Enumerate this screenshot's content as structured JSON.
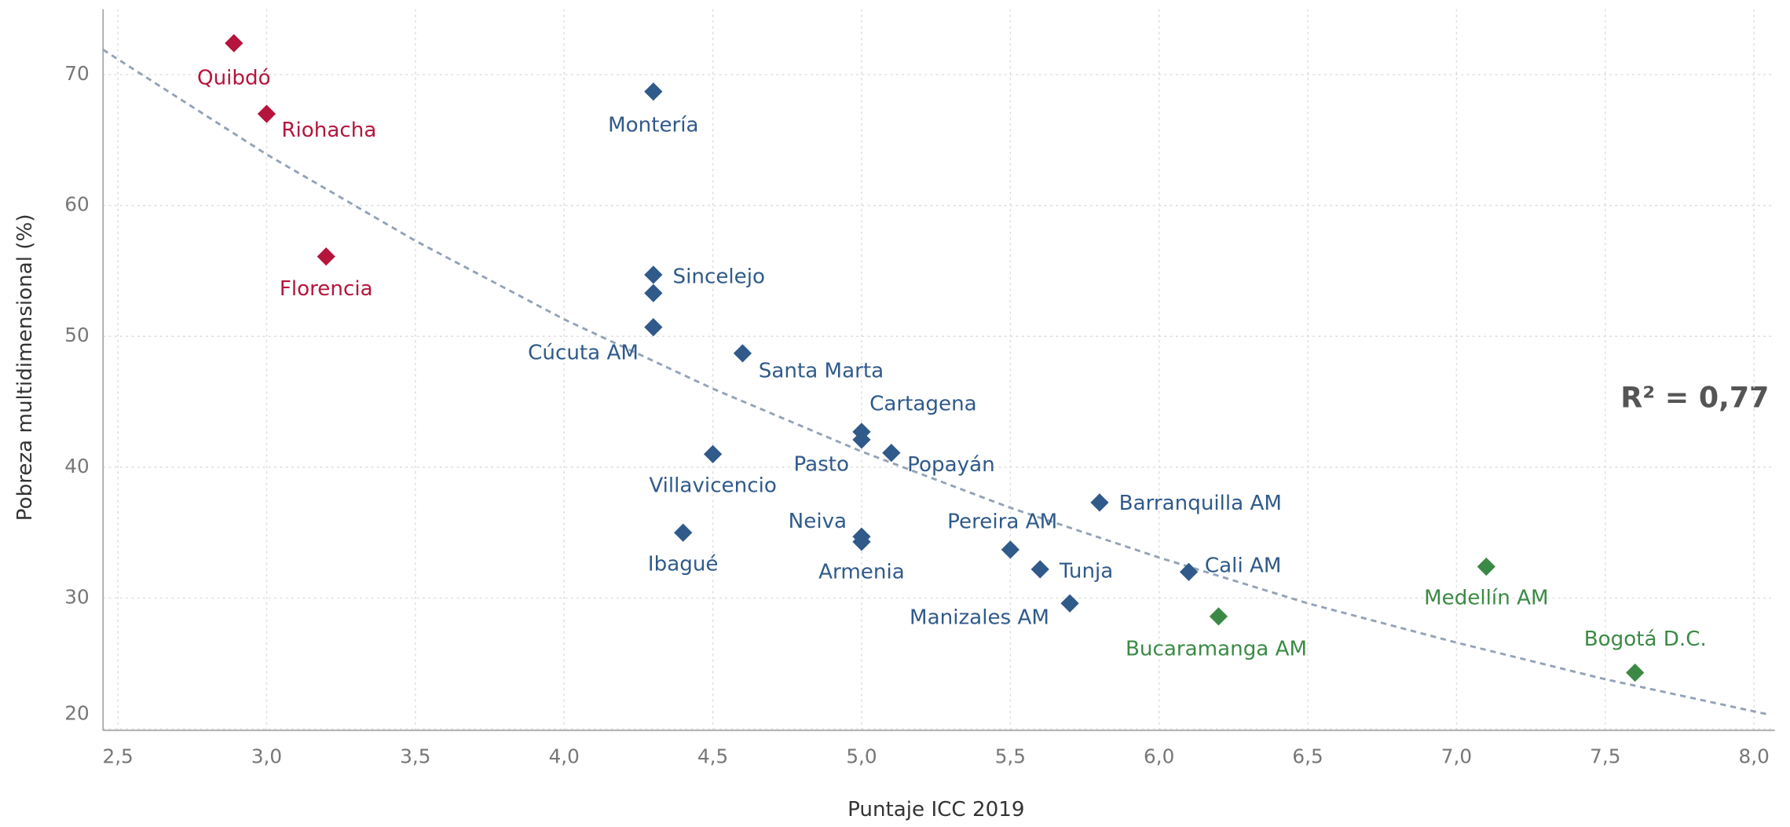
{
  "chart_data": {
    "type": "scatter",
    "xlabel": "Puntaje ICC 2019",
    "ylabel": "Pobreza multidimensional (%)",
    "annotation": "R² = 0,77",
    "x": [
      2.89,
      3.0,
      3.2,
      4.3,
      4.3,
      4.3,
      4.3,
      4.6,
      5.0,
      5.0,
      5.1,
      4.5,
      5.8,
      4.4,
      5.0,
      5.0,
      5.5,
      5.6,
      6.1,
      5.7,
      6.2,
      7.1,
      7.6
    ],
    "values": [
      72.4,
      67.0,
      56.1,
      68.7,
      54.7,
      53.3,
      50.7,
      48.7,
      42.7,
      42.1,
      41.1,
      41.0,
      37.3,
      35.0,
      34.7,
      34.3,
      33.7,
      32.2,
      32.0,
      29.6,
      28.6,
      32.4,
      24.3
    ],
    "labels": [
      "Quibdó",
      "Riohacha",
      "Florencia",
      "Montería",
      "Sincelejo",
      null,
      "Cúcuta AM",
      "Santa Marta",
      "Cartagena",
      "Pasto",
      "Popayán",
      "Villavicencio",
      "Barranquilla AM",
      "Ibagué",
      "Neiva",
      "Armenia",
      "Pereira AM",
      "Tunja",
      "Cali AM",
      "Manizales AM",
      "Bucaramanga AM",
      "Medellín AM",
      "Bogotá D.C."
    ],
    "colors": [
      "#b5153b",
      "#b5153b",
      "#b5153b",
      "#2f5a8a",
      "#2f5a8a",
      "#2f5a8a",
      "#2f5a8a",
      "#2f5a8a",
      "#2f5a8a",
      "#2f5a8a",
      "#2f5a8a",
      "#2f5a8a",
      "#2f5a8a",
      "#2f5a8a",
      "#2f5a8a",
      "#2f5a8a",
      "#2f5a8a",
      "#2f5a8a",
      "#2f5a8a",
      "#2f5a8a",
      "#3a8a45",
      "#3a8a45",
      "#3a8a45"
    ],
    "trend": {
      "x": [
        2.45,
        3.0,
        3.5,
        4.0,
        4.5,
        5.0,
        5.5,
        6.0,
        6.5,
        7.0,
        7.5,
        8.05
      ],
      "values": [
        71.9,
        63.9,
        57.3,
        51.3,
        46.0,
        41.2,
        36.9,
        33.1,
        29.6,
        26.6,
        23.8,
        21.1
      ],
      "color": "#93a3b8"
    },
    "xlim": [
      2.45,
      8.07
    ],
    "ylim": [
      19.9,
      75
    ],
    "xticks": [
      {
        "value": 2.5,
        "label": "2,5"
      },
      {
        "value": 3.0,
        "label": "3,0"
      },
      {
        "value": 3.5,
        "label": "3,5"
      },
      {
        "value": 4.0,
        "label": "4,0"
      },
      {
        "value": 4.5,
        "label": "4,5"
      },
      {
        "value": 5.0,
        "label": "5,0"
      },
      {
        "value": 5.5,
        "label": "5,5"
      },
      {
        "value": 6.0,
        "label": "6,0"
      },
      {
        "value": 6.5,
        "label": "6,5"
      },
      {
        "value": 7.0,
        "label": "7,0"
      },
      {
        "value": 7.5,
        "label": "7,5"
      },
      {
        "value": 8.0,
        "label": "8,0"
      }
    ],
    "yticks": [
      20,
      30,
      40,
      50,
      60,
      70
    ],
    "grid": true
  }
}
